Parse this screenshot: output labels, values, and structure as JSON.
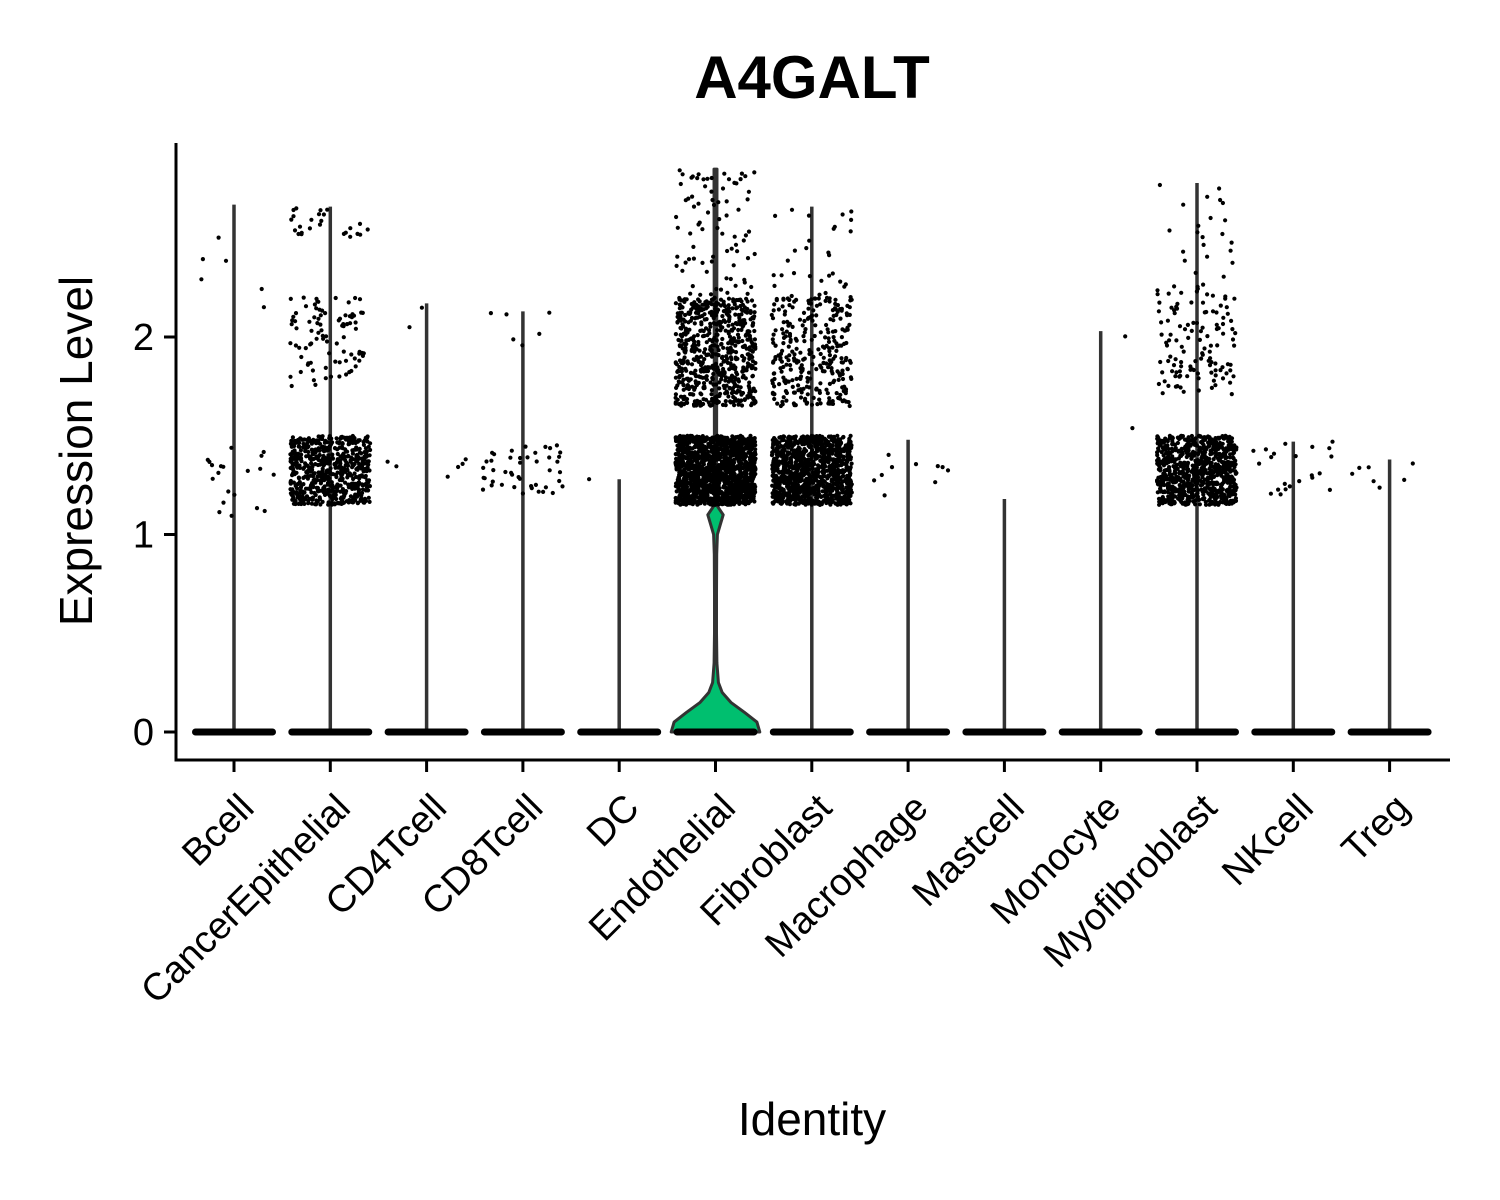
{
  "chart_data": {
    "type": "violin",
    "title": "A4GALT",
    "xlabel": "Identity",
    "ylabel": "Expression Level",
    "ylim": [
      -0.15,
      2.98
    ],
    "yticks": [
      0,
      1,
      2
    ],
    "grid": false,
    "legend": "none",
    "colors": {
      "violin_fill": "#00BF6F",
      "violin_stroke": "#333333",
      "points": "#000000"
    },
    "categories": [
      "Bcell",
      "CancerEpithelial",
      "CD4Tcell",
      "CD8Tcell",
      "DC",
      "Endothelial",
      "Fibroblast",
      "Macrophage",
      "Mastcell",
      "Monocyte",
      "Myofibroblast",
      "NKcell",
      "Treg"
    ],
    "max_expression": [
      2.67,
      2.66,
      2.17,
      2.13,
      1.28,
      2.85,
      2.66,
      1.48,
      1.18,
      2.03,
      2.78,
      1.47,
      1.38
    ],
    "violins_with_visible_body": [
      "Endothelial"
    ],
    "endothelial_density": {
      "y": [
        0,
        0.05,
        0.1,
        0.15,
        0.2,
        0.25,
        0.35,
        0.5,
        0.7,
        0.9,
        1.0,
        1.05,
        1.1,
        1.15
      ],
      "half_width": [
        0.46,
        0.43,
        0.3,
        0.16,
        0.07,
        0.03,
        0.015,
        0.01,
        0.01,
        0.012,
        0.02,
        0.05,
        0.08,
        0.01
      ]
    },
    "nonzero_point_clusters": [
      {
        "category": "Bcell",
        "groups": [
          {
            "min": 1.05,
            "max": 1.45,
            "n": 20
          },
          {
            "min": 1.75,
            "max": 2.67,
            "n": 6
          }
        ]
      },
      {
        "category": "CancerEpithelial",
        "groups": [
          {
            "min": 1.15,
            "max": 1.5,
            "n": 650
          },
          {
            "min": 1.75,
            "max": 2.2,
            "n": 90
          },
          {
            "min": 2.5,
            "max": 2.66,
            "n": 25
          }
        ]
      },
      {
        "category": "CD4Tcell",
        "groups": [
          {
            "min": 1.2,
            "max": 1.42,
            "n": 6
          },
          {
            "min": 2.0,
            "max": 2.17,
            "n": 2
          }
        ]
      },
      {
        "category": "CD8Tcell",
        "groups": [
          {
            "min": 1.2,
            "max": 1.46,
            "n": 45
          },
          {
            "min": 1.9,
            "max": 2.13,
            "n": 6
          }
        ]
      },
      {
        "category": "DC",
        "groups": [
          {
            "min": 1.28,
            "max": 1.28,
            "n": 1
          }
        ]
      },
      {
        "category": "Endothelial",
        "groups": [
          {
            "min": 1.15,
            "max": 1.5,
            "n": 1400
          },
          {
            "min": 1.65,
            "max": 2.2,
            "n": 650
          },
          {
            "min": 2.2,
            "max": 2.85,
            "n": 80
          }
        ]
      },
      {
        "category": "Fibroblast",
        "groups": [
          {
            "min": 1.15,
            "max": 1.5,
            "n": 1100
          },
          {
            "min": 1.65,
            "max": 2.2,
            "n": 300
          },
          {
            "min": 2.2,
            "max": 2.66,
            "n": 30
          }
        ]
      },
      {
        "category": "Macrophage",
        "groups": [
          {
            "min": 1.18,
            "max": 1.48,
            "n": 10
          }
        ]
      },
      {
        "category": "Mastcell",
        "groups": []
      },
      {
        "category": "Monocyte",
        "groups": [
          {
            "min": 1.18,
            "max": 2.03,
            "n": 2
          }
        ]
      },
      {
        "category": "Myofibroblast",
        "groups": [
          {
            "min": 1.15,
            "max": 1.5,
            "n": 800
          },
          {
            "min": 1.7,
            "max": 2.25,
            "n": 120
          },
          {
            "min": 2.25,
            "max": 2.78,
            "n": 25
          }
        ]
      },
      {
        "category": "NKcell",
        "groups": [
          {
            "min": 1.2,
            "max": 1.47,
            "n": 22
          }
        ]
      },
      {
        "category": "Treg",
        "groups": [
          {
            "min": 1.22,
            "max": 1.38,
            "n": 7
          }
        ]
      }
    ]
  }
}
